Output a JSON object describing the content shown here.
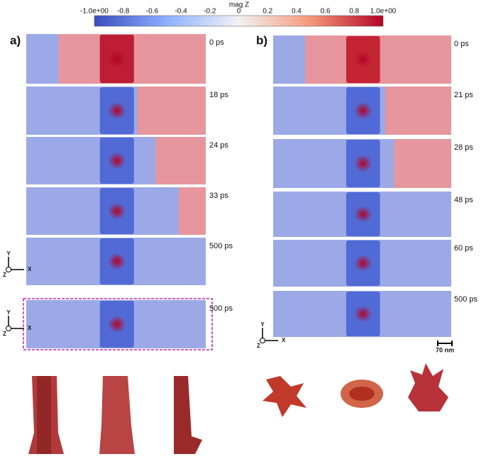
{
  "colorbar": {
    "title": "mag Z",
    "ticks": [
      "-1.0e+00",
      "-0.8",
      "-0.6",
      "-0.4",
      "-0.2",
      "0",
      "0.2",
      "0.4",
      "0.6",
      "0.8",
      "1.0e+00"
    ]
  },
  "panel_a": {
    "label": "a)",
    "times": [
      "0 ps",
      "18 ps",
      "24 ps",
      "33 ps",
      "500 ps",
      "500 ps"
    ]
  },
  "panel_b": {
    "label": "b)",
    "times": [
      "0 ps",
      "21 ps",
      "28 ps",
      "48 ps",
      "60 ps",
      "500 ps"
    ],
    "scale_bar": "70 nm"
  },
  "axes": {
    "x": "X",
    "y": "Y",
    "z": "Z"
  }
}
